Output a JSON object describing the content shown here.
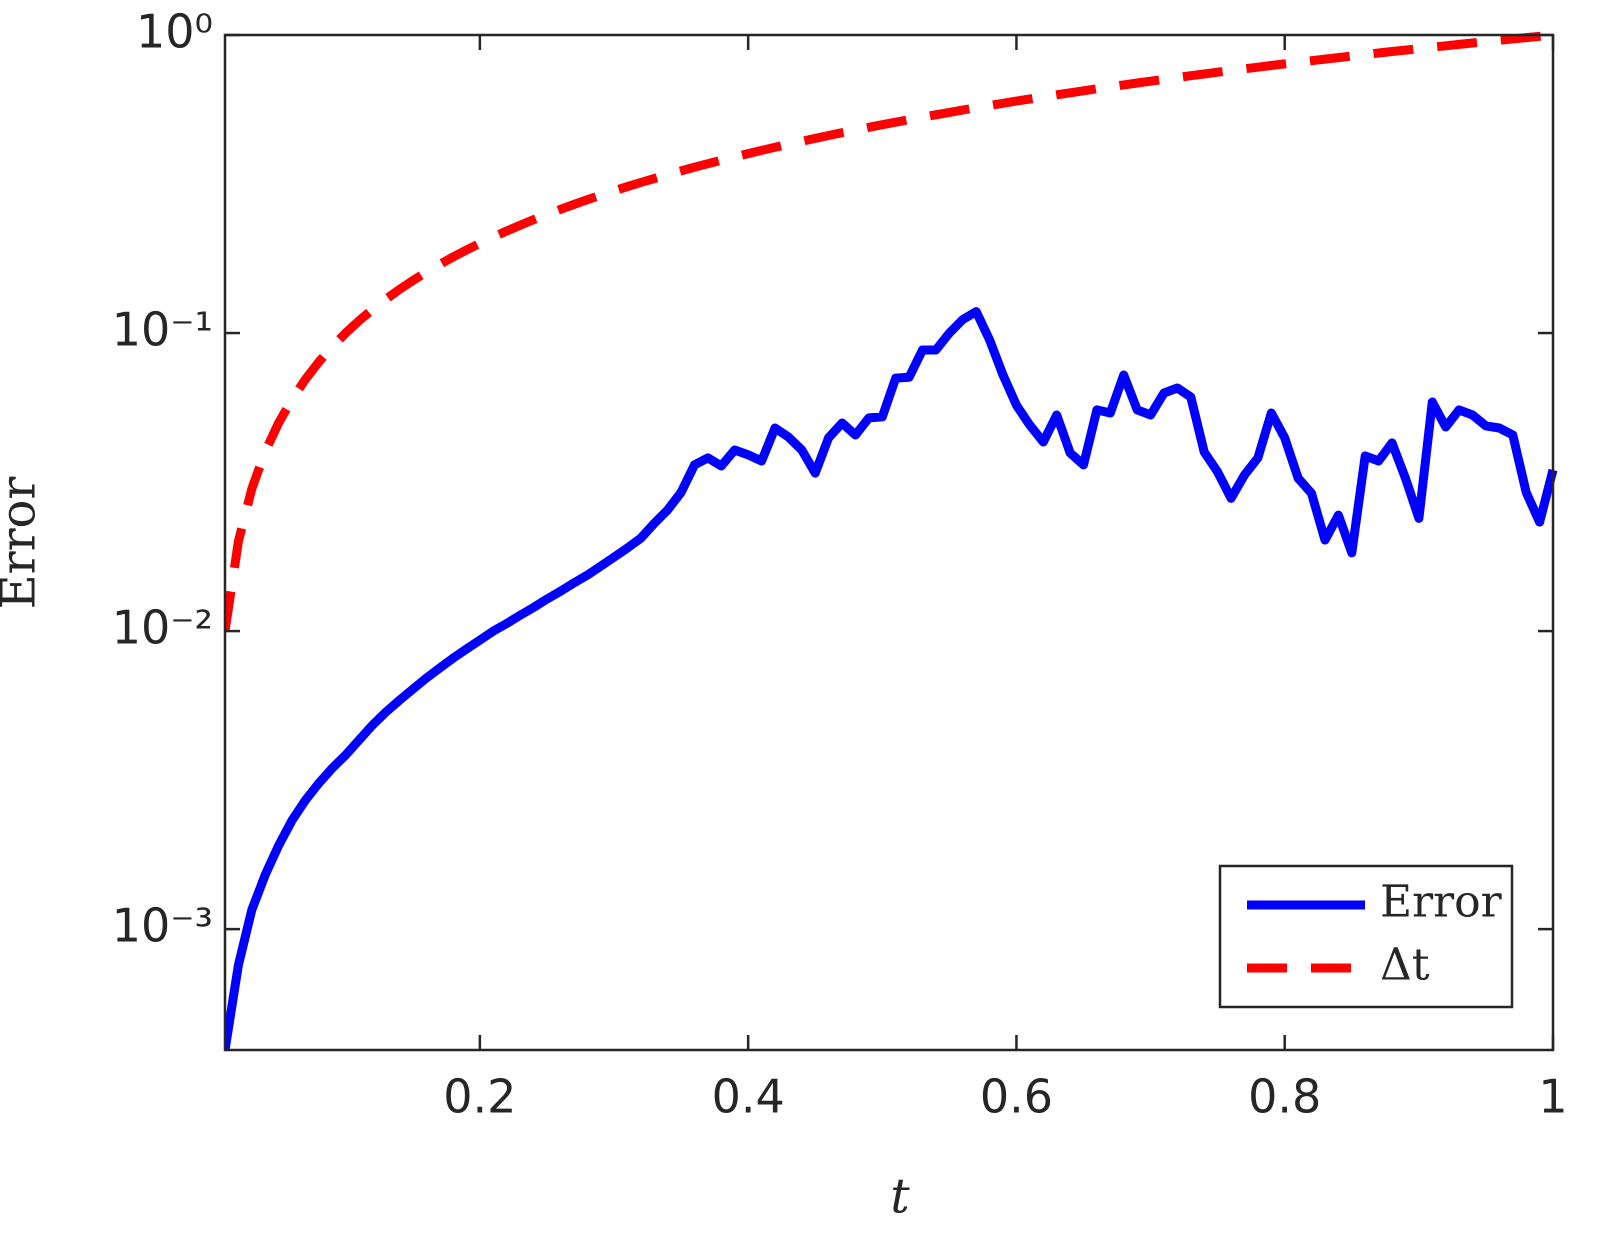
{
  "chart_data": {
    "type": "line",
    "xlabel": "t",
    "ylabel": "Error",
    "x": [
      0.01,
      0.02,
      0.03,
      0.04,
      0.05,
      0.06,
      0.07,
      0.08,
      0.09,
      0.1,
      0.11,
      0.12,
      0.13,
      0.14,
      0.15,
      0.16,
      0.17,
      0.18,
      0.19,
      0.2,
      0.21,
      0.22,
      0.23,
      0.24,
      0.25,
      0.26,
      0.27,
      0.28,
      0.29,
      0.3,
      0.31,
      0.32,
      0.33,
      0.34,
      0.35,
      0.36,
      0.37,
      0.38,
      0.39,
      0.4,
      0.41,
      0.42,
      0.43,
      0.44,
      0.45,
      0.46,
      0.47,
      0.48,
      0.49,
      0.5,
      0.51,
      0.52,
      0.53,
      0.54,
      0.55,
      0.56,
      0.57,
      0.58,
      0.59,
      0.6,
      0.61,
      0.62,
      0.63,
      0.64,
      0.65,
      0.66,
      0.67,
      0.68,
      0.69,
      0.7,
      0.71,
      0.72,
      0.73,
      0.74,
      0.75,
      0.76,
      0.77,
      0.78,
      0.79,
      0.8,
      0.81,
      0.82,
      0.83,
      0.84,
      0.85,
      0.86,
      0.87,
      0.88,
      0.89,
      0.9,
      0.91,
      0.92,
      0.93,
      0.94,
      0.95,
      0.96,
      0.97,
      0.98,
      0.99,
      1.0
    ],
    "series": [
      {
        "name": "Error",
        "color": "#0000ff",
        "dash": false,
        "values": [
          0.000393,
          0.000757,
          0.00116,
          0.00152,
          0.00191,
          0.00232,
          0.00271,
          0.00309,
          0.00347,
          0.00384,
          0.00431,
          0.00484,
          0.00535,
          0.00586,
          0.00638,
          0.00695,
          0.00751,
          0.00811,
          0.00871,
          0.00933,
          0.01,
          0.0106,
          0.0113,
          0.012,
          0.0128,
          0.0136,
          0.0145,
          0.0154,
          0.0165,
          0.0177,
          0.019,
          0.0205,
          0.023,
          0.0255,
          0.0292,
          0.0361,
          0.0381,
          0.0358,
          0.0405,
          0.039,
          0.0372,
          0.048,
          0.0448,
          0.0405,
          0.0339,
          0.0445,
          0.0499,
          0.0455,
          0.0519,
          0.0523,
          0.0706,
          0.0711,
          0.0877,
          0.0877,
          0.1,
          0.111,
          0.118,
          0.0948,
          0.0723,
          0.0573,
          0.0491,
          0.0431,
          0.0531,
          0.0396,
          0.0361,
          0.0552,
          0.0539,
          0.0723,
          0.0552,
          0.0531,
          0.0629,
          0.0654,
          0.061,
          0.0399,
          0.0342,
          0.0279,
          0.0334,
          0.0381,
          0.0539,
          0.0445,
          0.0326,
          0.029,
          0.0202,
          0.0245,
          0.0183,
          0.0387,
          0.0372,
          0.0428,
          0.0326,
          0.0239,
          0.0587,
          0.0484,
          0.0552,
          0.0531,
          0.0488,
          0.048,
          0.0455,
          0.0292,
          0.0232,
          0.0347
        ]
      },
      {
        "name": "Δt",
        "color": "#ff0000",
        "dash": true,
        "values": [
          0.01,
          0.02,
          0.03,
          0.04,
          0.05,
          0.06,
          0.07,
          0.08,
          0.09,
          0.1,
          0.11,
          0.12,
          0.13,
          0.14,
          0.15,
          0.16,
          0.17,
          0.18,
          0.19,
          0.2,
          0.21,
          0.22,
          0.23,
          0.24,
          0.25,
          0.26,
          0.27,
          0.28,
          0.29,
          0.3,
          0.31,
          0.32,
          0.33,
          0.34,
          0.35,
          0.36,
          0.37,
          0.38,
          0.39,
          0.4,
          0.41,
          0.42,
          0.43,
          0.44,
          0.45,
          0.46,
          0.47,
          0.48,
          0.49,
          0.5,
          0.51,
          0.52,
          0.53,
          0.54,
          0.55,
          0.56,
          0.57,
          0.58,
          0.59,
          0.6,
          0.61,
          0.62,
          0.63,
          0.64,
          0.65,
          0.66,
          0.67,
          0.68,
          0.69,
          0.7,
          0.71,
          0.72,
          0.73,
          0.74,
          0.75,
          0.76,
          0.77,
          0.78,
          0.79,
          0.8,
          0.81,
          0.82,
          0.83,
          0.84,
          0.85,
          0.86,
          0.87,
          0.88,
          0.89,
          0.9,
          0.91,
          0.92,
          0.93,
          0.94,
          0.95,
          0.96,
          0.97,
          0.98,
          0.99,
          1.0
        ]
      }
    ],
    "xlim": [
      0.01,
      1
    ],
    "xticks": [
      0.2,
      0.4,
      0.6,
      0.8,
      1
    ],
    "ylim": [
      0.000393,
      1
    ],
    "ylog": true,
    "yticks": [
      {
        "value": 0.001,
        "label": "10⁻³"
      },
      {
        "value": 0.01,
        "label": "10⁻²"
      },
      {
        "value": 0.1,
        "label": "10⁻¹"
      },
      {
        "value": 1,
        "label": "10⁰"
      }
    ],
    "grid": false,
    "legend": "lower right"
  }
}
